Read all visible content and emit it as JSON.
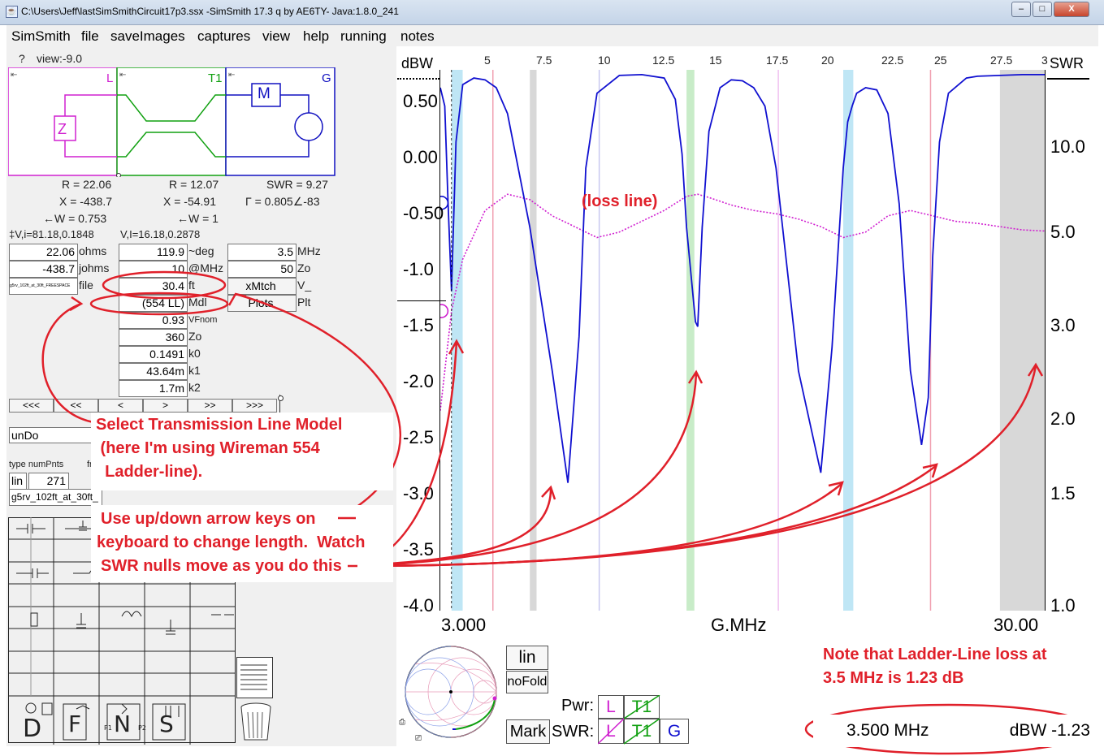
{
  "window": {
    "title": "C:\\Users\\Jeff\\lastSimSmithCircuit17p3.ssx  -SimSmith 17.3 q by AE6TY-    Java:1.8.0_241",
    "min_label": "–",
    "max_label": "□",
    "close_label": "X"
  },
  "menu": [
    "SimSmith",
    "file",
    "saveImages",
    "captures",
    "view",
    "help",
    "running",
    "notes"
  ],
  "left": {
    "help": "?",
    "view": "view:-9.0",
    "schematic": {
      "L": "L",
      "T1": "T1",
      "G": "G",
      "Z": "Z",
      "M": "M"
    },
    "readouts": {
      "r1": "R = 22.06",
      "x1": "X = -438.7",
      "w1": "←W = 0.753",
      "vi1": "‡V,i=81.18,0.1848",
      "r2": "R = 12.07",
      "x2": "X = -54.91",
      "w2": "←W = 1",
      "vi2": "V,I=16.18,0.2878",
      "swr": "SWR = 9.27",
      "gamma": "Γ = 0.805∠-83"
    },
    "col1": {
      "v1": "22.06",
      "u1": "ohms",
      "v2": "-438.7",
      "u2": "johms",
      "file_val": "g5rv_102ft_at_30ft_FREESPACE",
      "u3": "file"
    },
    "col2": [
      {
        "v": "119.9",
        "u": "~deg"
      },
      {
        "v": "10",
        "u": "@MHz"
      },
      {
        "v": "30.4",
        "u": "ft"
      },
      {
        "v": "(554 LL)",
        "u": "Mdl"
      },
      {
        "v": "0.93",
        "u": "VFnom"
      },
      {
        "v": "360",
        "u": "Zo"
      },
      {
        "v": "0.1491",
        "u": "k0"
      },
      {
        "v": "43.64m",
        "u": "k1"
      },
      {
        "v": "1.7m",
        "u": "k2"
      }
    ],
    "col3": [
      {
        "v": "3.5",
        "u": "MHz"
      },
      {
        "v": "50",
        "u": "Zo"
      },
      {
        "v": "xMtch",
        "u": "V_"
      },
      {
        "v": "Plots",
        "u": "Plt"
      }
    ],
    "nav": [
      "<<<",
      "<<",
      "<",
      ">",
      ">>",
      ">>>"
    ],
    "undo": "unDo",
    "type_label": "type numPnts",
    "fr_label": "fr",
    "lin": "lin",
    "numpnts": "271",
    "fname": "g5rv_102ft_at_30ft_",
    "palette_bottom": [
      "D",
      "F",
      "N",
      "S"
    ]
  },
  "plot": {
    "left_unit": "dBW",
    "right_unit": "SWR",
    "xlabel": "G.MHz",
    "xmin_label": "3.000",
    "xmax_label": "30.00",
    "top_ticks": [
      "5",
      "7.5",
      "10",
      "12.5",
      "15",
      "17.5",
      "20",
      "22.5",
      "25",
      "27.5",
      "3"
    ],
    "left_ticks": [
      "0.50",
      "0.00",
      "-0.50",
      "-1.0",
      "-1.5",
      "-2.0",
      "-2.5",
      "-3.0",
      "-3.5",
      "-4.0"
    ],
    "right_ticks": [
      "10.0",
      "5.0",
      "3.0",
      "2.0",
      "1.5",
      "1.0"
    ],
    "colors": {
      "swr": "#1010d0",
      "loss": "#d020d0",
      "annotation": "#e0202a"
    }
  },
  "chart_data": {
    "type": "line",
    "xlabel": "G.MHz",
    "x_range": [
      3.0,
      30.0
    ],
    "y_left_label": "dBW",
    "y_left_range": [
      -4.0,
      1.0
    ],
    "y_right_label": "SWR",
    "y_right_ticks": [
      10.0,
      5.0,
      3.0,
      2.0,
      1.5,
      1.0
    ],
    "series": [
      {
        "x": [
          3.0,
          3.2,
          3.35,
          3.5,
          3.7,
          4.0,
          4.5,
          5.0,
          5.5,
          6.0,
          7.0,
          8.0,
          8.7,
          9.2,
          9.5,
          10.0,
          11.0,
          12.0,
          13.0,
          13.5,
          13.8,
          14.0,
          14.4,
          14.5,
          14.7,
          15.0,
          15.5,
          16.0,
          16.5,
          17.0,
          17.5,
          18.0,
          19.0,
          20.0,
          20.5,
          21.0,
          21.2,
          21.4,
          21.6,
          22.0,
          22.5,
          23.0,
          23.5,
          24.0,
          24.5,
          24.8,
          25.0,
          25.3,
          25.7,
          26.5,
          27.0,
          28.0,
          29.0,
          30.0
        ],
        "swr": [
          10.0,
          8.5,
          4.5,
          3.0,
          6.5,
          10.3,
          11.0,
          10.8,
          10.0,
          8.0,
          4.0,
          2.2,
          1.5,
          2.5,
          5.5,
          9.5,
          11.3,
          11.4,
          11.0,
          9.0,
          6.0,
          4.0,
          2.65,
          2.6,
          4.0,
          7.0,
          10.0,
          10.8,
          10.7,
          10.0,
          8.5,
          5.5,
          2.2,
          1.55,
          2.4,
          5.5,
          7.5,
          8.5,
          9.5,
          10.0,
          9.8,
          8.0,
          4.5,
          2.2,
          1.7,
          2.0,
          3.5,
          6.5,
          9.5,
          11.0,
          11.2,
          11.3,
          11.4,
          11.4
        ]
      },
      {
        "x": [
          3.0,
          3.3,
          3.5,
          4.0,
          5.0,
          6.0,
          7.0,
          8.0,
          9.0,
          10.0,
          11.0,
          12.0,
          13.0,
          14.0,
          14.5,
          15.0,
          16.0,
          17.0,
          18.0,
          19.0,
          20.0,
          21.0,
          22.0,
          23.0,
          24.0,
          25.0,
          26.0,
          27.0,
          28.0,
          29.0,
          30.0
        ],
        "loss_dbw": [
          -2.15,
          -1.6,
          -1.23,
          -0.75,
          -0.3,
          -0.15,
          -0.2,
          -0.35,
          -0.45,
          -0.55,
          -0.5,
          -0.4,
          -0.3,
          -0.17,
          -0.15,
          -0.18,
          -0.25,
          -0.3,
          -0.33,
          -0.38,
          -0.45,
          -0.55,
          -0.5,
          -0.35,
          -0.3,
          -0.35,
          -0.4,
          -0.42,
          -0.45,
          -0.48,
          -0.49
        ]
      }
    ]
  },
  "annotations": {
    "loss_line": "(loss line)",
    "model_text": [
      "Select Transmission Line Model",
      " (here I'm using Wireman 554",
      "  Ladder-line)."
    ],
    "arrow_text": [
      "Use up/down arrow keys on",
      "keyboard to change length.  Watch",
      "SWR nulls move as you do this"
    ],
    "note_text": [
      "Note that Ladder-Line loss at",
      "3.5 MHz is 1.23 dB"
    ]
  },
  "bottom": {
    "lin": "lin",
    "nofold": "noFold",
    "mark": "Mark",
    "pwr": "Pwr:",
    "swr": "SWR:",
    "btn_l": "L",
    "btn_t1": "T1",
    "btn_g": "G",
    "freq": "3.500 MHz",
    "dbw_readout": "dBW -1.23"
  }
}
